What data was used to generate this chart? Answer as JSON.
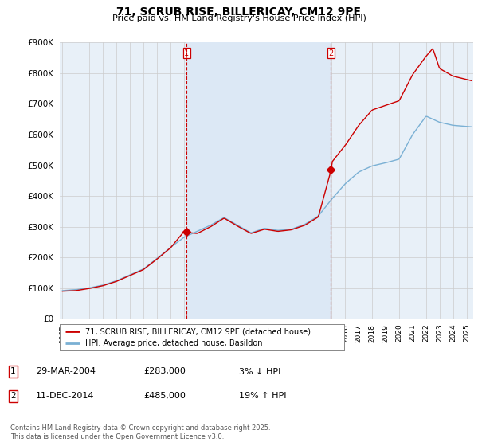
{
  "title": "71, SCRUB RISE, BILLERICAY, CM12 9PE",
  "subtitle": "Price paid vs. HM Land Registry's House Price Index (HPI)",
  "legend_line1": "71, SCRUB RISE, BILLERICAY, CM12 9PE (detached house)",
  "legend_line2": "HPI: Average price, detached house, Basildon",
  "sale1_date_str": "29-MAR-2004",
  "sale1_price_str": "£283,000",
  "sale1_hpi_str": "3% ↓ HPI",
  "sale1_year": 2004.22,
  "sale1_value": 283000,
  "sale2_date_str": "11-DEC-2014",
  "sale2_price_str": "£485,000",
  "sale2_hpi_str": "19% ↑ HPI",
  "sale2_year": 2014.94,
  "sale2_value": 485000,
  "footer": "Contains HM Land Registry data © Crown copyright and database right 2025.\nThis data is licensed under the Open Government Licence v3.0.",
  "line_color_red": "#cc0000",
  "line_color_blue": "#7ab0d4",
  "shade_color": "#dce8f5",
  "marker_color": "#cc0000",
  "grid_color": "#cccccc",
  "background_color": "#ffffff",
  "plot_bg_color": "#e8f0f8",
  "ylim": [
    0,
    900000
  ],
  "xlim_start": 1994.8,
  "xlim_end": 2025.5
}
